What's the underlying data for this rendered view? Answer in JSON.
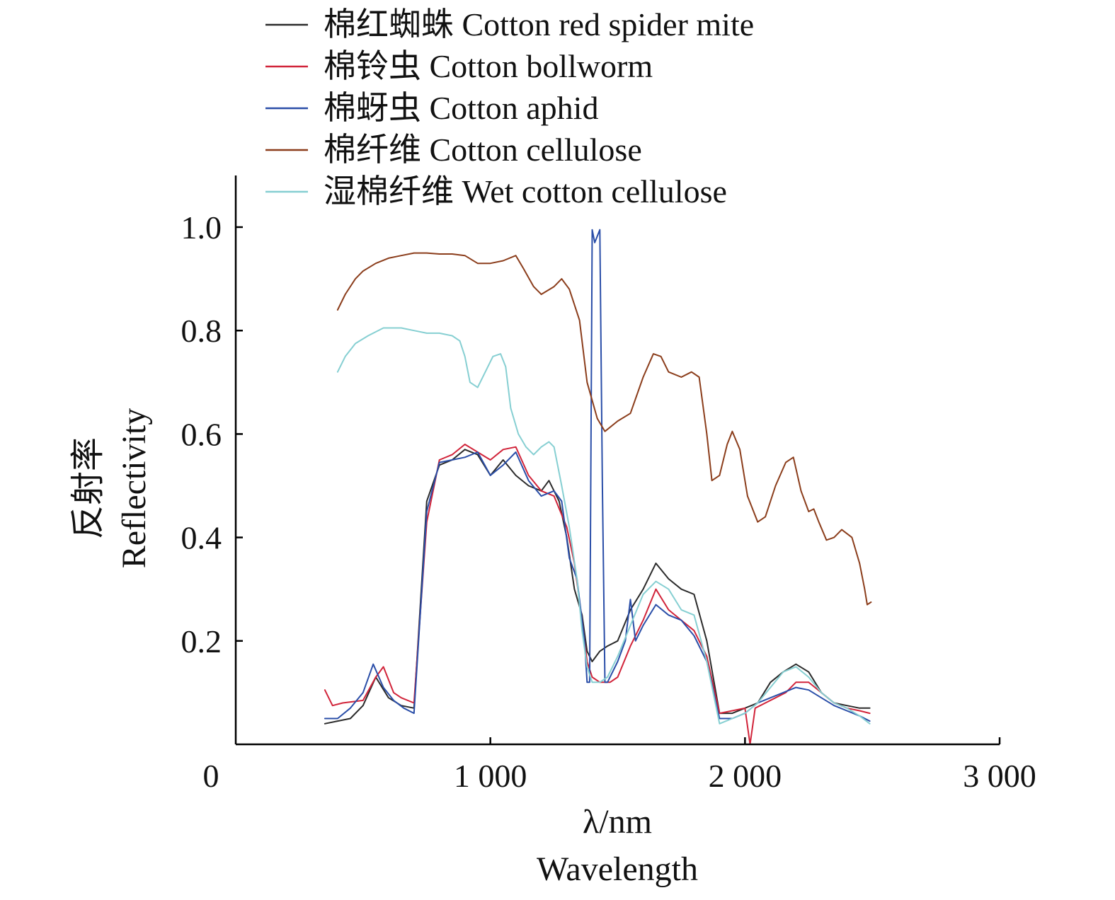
{
  "chart_data": {
    "type": "line",
    "xlabel": "λ/nm",
    "xlabel_en": "Wavelength",
    "ylabel": "反射率",
    "ylabel_en": "Reflectivity",
    "xlim": [
      0,
      3000
    ],
    "ylim": [
      0,
      1.1
    ],
    "x_ticks": [
      0,
      1000,
      2000,
      3000
    ],
    "x_tick_labels": [
      "0",
      "1 000",
      "2 000",
      "3 000"
    ],
    "y_ticks": [
      0.2,
      0.4,
      0.6,
      0.8,
      1.0
    ],
    "y_tick_labels": [
      "0.2",
      "0.4",
      "0.6",
      "0.8",
      "1.0"
    ],
    "grid": false,
    "legend_position": "top",
    "series": [
      {
        "name": "棉红蜘蛛 Cotton red spider mite",
        "color": "#2b2b2b",
        "points": [
          [
            350,
            0.04
          ],
          [
            400,
            0.045
          ],
          [
            450,
            0.05
          ],
          [
            500,
            0.075
          ],
          [
            550,
            0.13
          ],
          [
            600,
            0.09
          ],
          [
            650,
            0.075
          ],
          [
            700,
            0.07
          ],
          [
            750,
            0.47
          ],
          [
            800,
            0.54
          ],
          [
            850,
            0.55
          ],
          [
            900,
            0.57
          ],
          [
            950,
            0.56
          ],
          [
            1000,
            0.52
          ],
          [
            1050,
            0.55
          ],
          [
            1100,
            0.52
          ],
          [
            1150,
            0.5
          ],
          [
            1200,
            0.49
          ],
          [
            1230,
            0.51
          ],
          [
            1270,
            0.47
          ],
          [
            1300,
            0.4
          ],
          [
            1330,
            0.3
          ],
          [
            1360,
            0.25
          ],
          [
            1380,
            0.18
          ],
          [
            1400,
            0.16
          ],
          [
            1430,
            0.18
          ],
          [
            1460,
            0.19
          ],
          [
            1500,
            0.2
          ],
          [
            1550,
            0.26
          ],
          [
            1600,
            0.3
          ],
          [
            1650,
            0.35
          ],
          [
            1700,
            0.32
          ],
          [
            1750,
            0.3
          ],
          [
            1800,
            0.29
          ],
          [
            1850,
            0.2
          ],
          [
            1900,
            0.06
          ],
          [
            1950,
            0.06
          ],
          [
            2000,
            0.07
          ],
          [
            2050,
            0.08
          ],
          [
            2100,
            0.12
          ],
          [
            2150,
            0.14
          ],
          [
            2200,
            0.155
          ],
          [
            2250,
            0.14
          ],
          [
            2300,
            0.1
          ],
          [
            2350,
            0.08
          ],
          [
            2400,
            0.075
          ],
          [
            2450,
            0.07
          ],
          [
            2490,
            0.07
          ]
        ]
      },
      {
        "name": "棉铃虫 Cotton bollworm",
        "color": "#d1243a",
        "points": [
          [
            350,
            0.105
          ],
          [
            380,
            0.075
          ],
          [
            420,
            0.08
          ],
          [
            500,
            0.085
          ],
          [
            550,
            0.13
          ],
          [
            580,
            0.15
          ],
          [
            620,
            0.1
          ],
          [
            650,
            0.09
          ],
          [
            700,
            0.08
          ],
          [
            750,
            0.43
          ],
          [
            800,
            0.55
          ],
          [
            850,
            0.56
          ],
          [
            900,
            0.58
          ],
          [
            950,
            0.565
          ],
          [
            1000,
            0.55
          ],
          [
            1050,
            0.57
          ],
          [
            1100,
            0.575
          ],
          [
            1150,
            0.52
          ],
          [
            1200,
            0.49
          ],
          [
            1250,
            0.48
          ],
          [
            1300,
            0.42
          ],
          [
            1330,
            0.35
          ],
          [
            1360,
            0.24
          ],
          [
            1380,
            0.16
          ],
          [
            1400,
            0.13
          ],
          [
            1430,
            0.12
          ],
          [
            1470,
            0.12
          ],
          [
            1500,
            0.13
          ],
          [
            1550,
            0.19
          ],
          [
            1600,
            0.24
          ],
          [
            1650,
            0.3
          ],
          [
            1700,
            0.26
          ],
          [
            1750,
            0.24
          ],
          [
            1800,
            0.22
          ],
          [
            1850,
            0.17
          ],
          [
            1900,
            0.06
          ],
          [
            1950,
            0.065
          ],
          [
            2000,
            0.07
          ],
          [
            2020,
            0.0
          ],
          [
            2040,
            0.07
          ],
          [
            2080,
            0.08
          ],
          [
            2120,
            0.09
          ],
          [
            2160,
            0.1
          ],
          [
            2200,
            0.12
          ],
          [
            2250,
            0.12
          ],
          [
            2300,
            0.1
          ],
          [
            2350,
            0.08
          ],
          [
            2400,
            0.07
          ],
          [
            2450,
            0.065
          ],
          [
            2490,
            0.06
          ]
        ]
      },
      {
        "name": "棉蚜虫 Cotton aphid",
        "color": "#2a4ea8",
        "points": [
          [
            350,
            0.05
          ],
          [
            400,
            0.05
          ],
          [
            450,
            0.07
          ],
          [
            500,
            0.1
          ],
          [
            540,
            0.155
          ],
          [
            580,
            0.11
          ],
          [
            620,
            0.085
          ],
          [
            660,
            0.07
          ],
          [
            700,
            0.06
          ],
          [
            750,
            0.45
          ],
          [
            800,
            0.545
          ],
          [
            850,
            0.55
          ],
          [
            900,
            0.555
          ],
          [
            950,
            0.565
          ],
          [
            1000,
            0.52
          ],
          [
            1050,
            0.54
          ],
          [
            1100,
            0.565
          ],
          [
            1150,
            0.51
          ],
          [
            1200,
            0.48
          ],
          [
            1250,
            0.49
          ],
          [
            1280,
            0.47
          ],
          [
            1310,
            0.36
          ],
          [
            1340,
            0.32
          ],
          [
            1370,
            0.2
          ],
          [
            1380,
            0.12
          ],
          [
            1390,
            0.12
          ],
          [
            1400,
            0.995
          ],
          [
            1410,
            0.97
          ],
          [
            1430,
            0.995
          ],
          [
            1440,
            0.5
          ],
          [
            1450,
            0.12
          ],
          [
            1460,
            0.12
          ],
          [
            1500,
            0.16
          ],
          [
            1530,
            0.2
          ],
          [
            1550,
            0.28
          ],
          [
            1570,
            0.2
          ],
          [
            1600,
            0.23
          ],
          [
            1650,
            0.27
          ],
          [
            1700,
            0.25
          ],
          [
            1750,
            0.24
          ],
          [
            1800,
            0.21
          ],
          [
            1850,
            0.16
          ],
          [
            1900,
            0.05
          ],
          [
            1950,
            0.05
          ],
          [
            2000,
            0.06
          ],
          [
            2050,
            0.08
          ],
          [
            2100,
            0.09
          ],
          [
            2150,
            0.1
          ],
          [
            2200,
            0.11
          ],
          [
            2250,
            0.105
          ],
          [
            2300,
            0.09
          ],
          [
            2350,
            0.075
          ],
          [
            2400,
            0.065
          ],
          [
            2450,
            0.055
          ],
          [
            2490,
            0.045
          ]
        ]
      },
      {
        "name": "棉纤维 Cotton cellulose",
        "color": "#8b3d1b",
        "points": [
          [
            400,
            0.84
          ],
          [
            430,
            0.87
          ],
          [
            470,
            0.9
          ],
          [
            500,
            0.915
          ],
          [
            550,
            0.93
          ],
          [
            600,
            0.94
          ],
          [
            650,
            0.945
          ],
          [
            700,
            0.95
          ],
          [
            750,
            0.95
          ],
          [
            800,
            0.948
          ],
          [
            850,
            0.948
          ],
          [
            900,
            0.945
          ],
          [
            950,
            0.93
          ],
          [
            1000,
            0.93
          ],
          [
            1050,
            0.935
          ],
          [
            1100,
            0.945
          ],
          [
            1130,
            0.92
          ],
          [
            1170,
            0.885
          ],
          [
            1200,
            0.87
          ],
          [
            1250,
            0.885
          ],
          [
            1280,
            0.9
          ],
          [
            1310,
            0.88
          ],
          [
            1350,
            0.82
          ],
          [
            1380,
            0.7
          ],
          [
            1420,
            0.63
          ],
          [
            1450,
            0.605
          ],
          [
            1500,
            0.625
          ],
          [
            1550,
            0.64
          ],
          [
            1600,
            0.71
          ],
          [
            1640,
            0.755
          ],
          [
            1670,
            0.75
          ],
          [
            1700,
            0.72
          ],
          [
            1750,
            0.71
          ],
          [
            1790,
            0.72
          ],
          [
            1820,
            0.71
          ],
          [
            1850,
            0.6
          ],
          [
            1870,
            0.51
          ],
          [
            1900,
            0.52
          ],
          [
            1930,
            0.58
          ],
          [
            1950,
            0.605
          ],
          [
            1980,
            0.57
          ],
          [
            2010,
            0.48
          ],
          [
            2050,
            0.43
          ],
          [
            2080,
            0.44
          ],
          [
            2120,
            0.5
          ],
          [
            2160,
            0.545
          ],
          [
            2190,
            0.555
          ],
          [
            2220,
            0.49
          ],
          [
            2250,
            0.45
          ],
          [
            2270,
            0.455
          ],
          [
            2290,
            0.43
          ],
          [
            2320,
            0.395
          ],
          [
            2350,
            0.4
          ],
          [
            2380,
            0.415
          ],
          [
            2420,
            0.4
          ],
          [
            2450,
            0.35
          ],
          [
            2470,
            0.3
          ],
          [
            2480,
            0.27
          ],
          [
            2495,
            0.275
          ]
        ]
      },
      {
        "name": "湿棉纤维 Wet cotton cellulose",
        "color": "#86cfd2",
        "points": [
          [
            400,
            0.72
          ],
          [
            430,
            0.75
          ],
          [
            470,
            0.775
          ],
          [
            520,
            0.79
          ],
          [
            580,
            0.805
          ],
          [
            650,
            0.805
          ],
          [
            700,
            0.8
          ],
          [
            750,
            0.795
          ],
          [
            800,
            0.795
          ],
          [
            850,
            0.79
          ],
          [
            880,
            0.78
          ],
          [
            900,
            0.75
          ],
          [
            920,
            0.7
          ],
          [
            950,
            0.69
          ],
          [
            980,
            0.72
          ],
          [
            1010,
            0.75
          ],
          [
            1040,
            0.755
          ],
          [
            1060,
            0.73
          ],
          [
            1080,
            0.65
          ],
          [
            1110,
            0.6
          ],
          [
            1140,
            0.575
          ],
          [
            1170,
            0.56
          ],
          [
            1200,
            0.575
          ],
          [
            1230,
            0.585
          ],
          [
            1250,
            0.575
          ],
          [
            1280,
            0.5
          ],
          [
            1310,
            0.42
          ],
          [
            1340,
            0.32
          ],
          [
            1360,
            0.22
          ],
          [
            1380,
            0.15
          ],
          [
            1400,
            0.12
          ],
          [
            1430,
            0.12
          ],
          [
            1460,
            0.13
          ],
          [
            1500,
            0.17
          ],
          [
            1550,
            0.23
          ],
          [
            1600,
            0.29
          ],
          [
            1650,
            0.315
          ],
          [
            1700,
            0.3
          ],
          [
            1750,
            0.26
          ],
          [
            1800,
            0.25
          ],
          [
            1850,
            0.16
          ],
          [
            1900,
            0.04
          ],
          [
            1950,
            0.05
          ],
          [
            2000,
            0.06
          ],
          [
            2050,
            0.08
          ],
          [
            2100,
            0.11
          ],
          [
            2150,
            0.14
          ],
          [
            2200,
            0.15
          ],
          [
            2250,
            0.13
          ],
          [
            2300,
            0.1
          ],
          [
            2350,
            0.08
          ],
          [
            2400,
            0.07
          ],
          [
            2450,
            0.055
          ],
          [
            2490,
            0.04
          ]
        ]
      }
    ]
  }
}
